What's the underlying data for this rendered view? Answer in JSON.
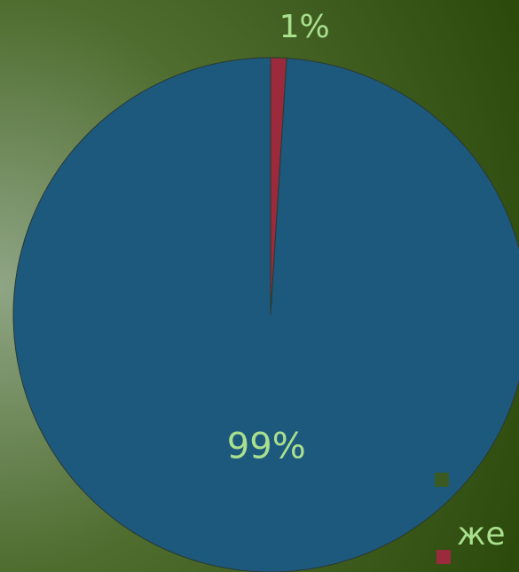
{
  "chart_data": {
    "type": "pie",
    "categories": [
      "же",
      null
    ],
    "values": [
      1,
      99
    ],
    "value_labels": [
      "1%",
      "99%"
    ],
    "colors": [
      "#9b2a3c",
      "#1d587d"
    ]
  }
}
